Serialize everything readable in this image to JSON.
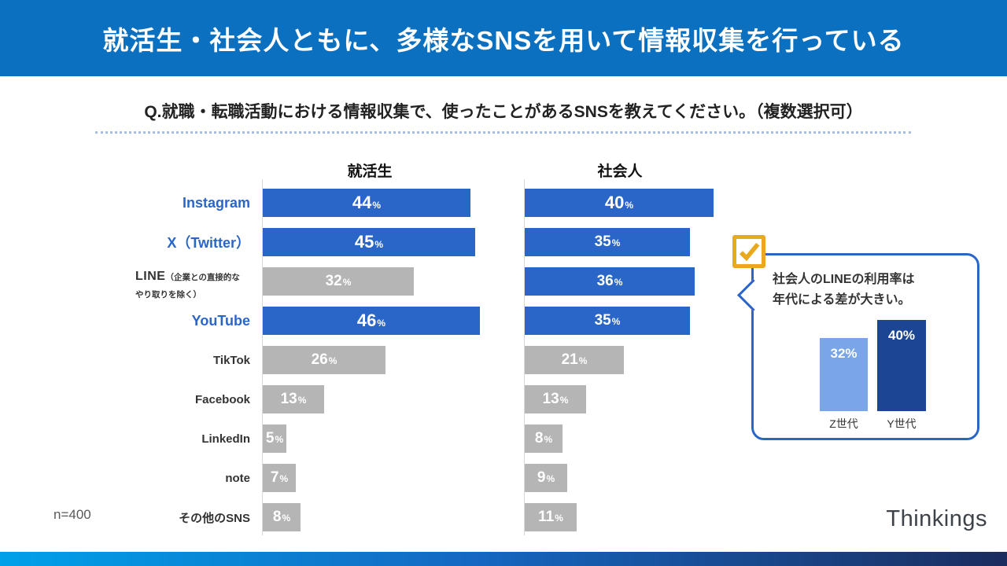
{
  "header": {
    "title": "就活生・社会人ともに、多様なSNSを用いて情報収集を行っている"
  },
  "question": {
    "text": "Q.就職・転職活動における情報収集で、使ったことがあるSNSを教えてください。（複数選択可）"
  },
  "chart_data": {
    "type": "bar",
    "orientation": "horizontal",
    "unit": "%",
    "xlim": [
      0,
      50
    ],
    "categories": [
      {
        "id": "instagram",
        "label": "Instagram",
        "blue": true
      },
      {
        "id": "x-twitter",
        "label": "X（Twitter）",
        "blue": true
      },
      {
        "id": "line",
        "label": "LINE",
        "note": [
          "（企業との直接的な",
          "やり取りを除く）"
        ],
        "blue": false
      },
      {
        "id": "youtube",
        "label": "YouTube",
        "blue": true
      },
      {
        "id": "tiktok",
        "label": "TikTok",
        "blue": false
      },
      {
        "id": "facebook",
        "label": "Facebook",
        "blue": false
      },
      {
        "id": "linkedin",
        "label": "LinkedIn",
        "blue": false
      },
      {
        "id": "note",
        "label": "note",
        "blue": false
      },
      {
        "id": "other-sns",
        "label": "その他のSNS",
        "blue": false
      }
    ],
    "series": [
      {
        "key": "students",
        "name": "就活生",
        "values": [
          44,
          45,
          32,
          46,
          26,
          13,
          5,
          7,
          8
        ],
        "emphasis": [
          true,
          true,
          false,
          true,
          false,
          false,
          false,
          false,
          false
        ]
      },
      {
        "key": "workers",
        "name": "社会人",
        "values": [
          40,
          35,
          36,
          35,
          21,
          13,
          8,
          9,
          11
        ],
        "emphasis": [
          true,
          true,
          true,
          true,
          false,
          false,
          false,
          false,
          false
        ]
      }
    ],
    "legend_position": "column-titles",
    "grid": false
  },
  "callout": {
    "line1": "社会人のLINEの利用率は",
    "line2": "年代による差が大きい。",
    "check_icon": "check-icon",
    "mini_chart": {
      "type": "bar",
      "categories": [
        "Z世代",
        "Y世代"
      ],
      "values": [
        32,
        40
      ],
      "unit": "%",
      "colors": [
        "#7AA5E8",
        "#1C4693"
      ]
    }
  },
  "footnote": "n=400",
  "logo": {
    "text": "Thinkings"
  },
  "colors": {
    "header_bg": "#0C70C1",
    "bar_blue": "#2966C8",
    "bar_gray": "#B5B5B5",
    "label_blue": "#2966C8",
    "rule_color": "#A6BEE2",
    "gold": "#E9A81D",
    "footer_from": "#00A1E9",
    "footer_to": "#1B2C5E"
  }
}
